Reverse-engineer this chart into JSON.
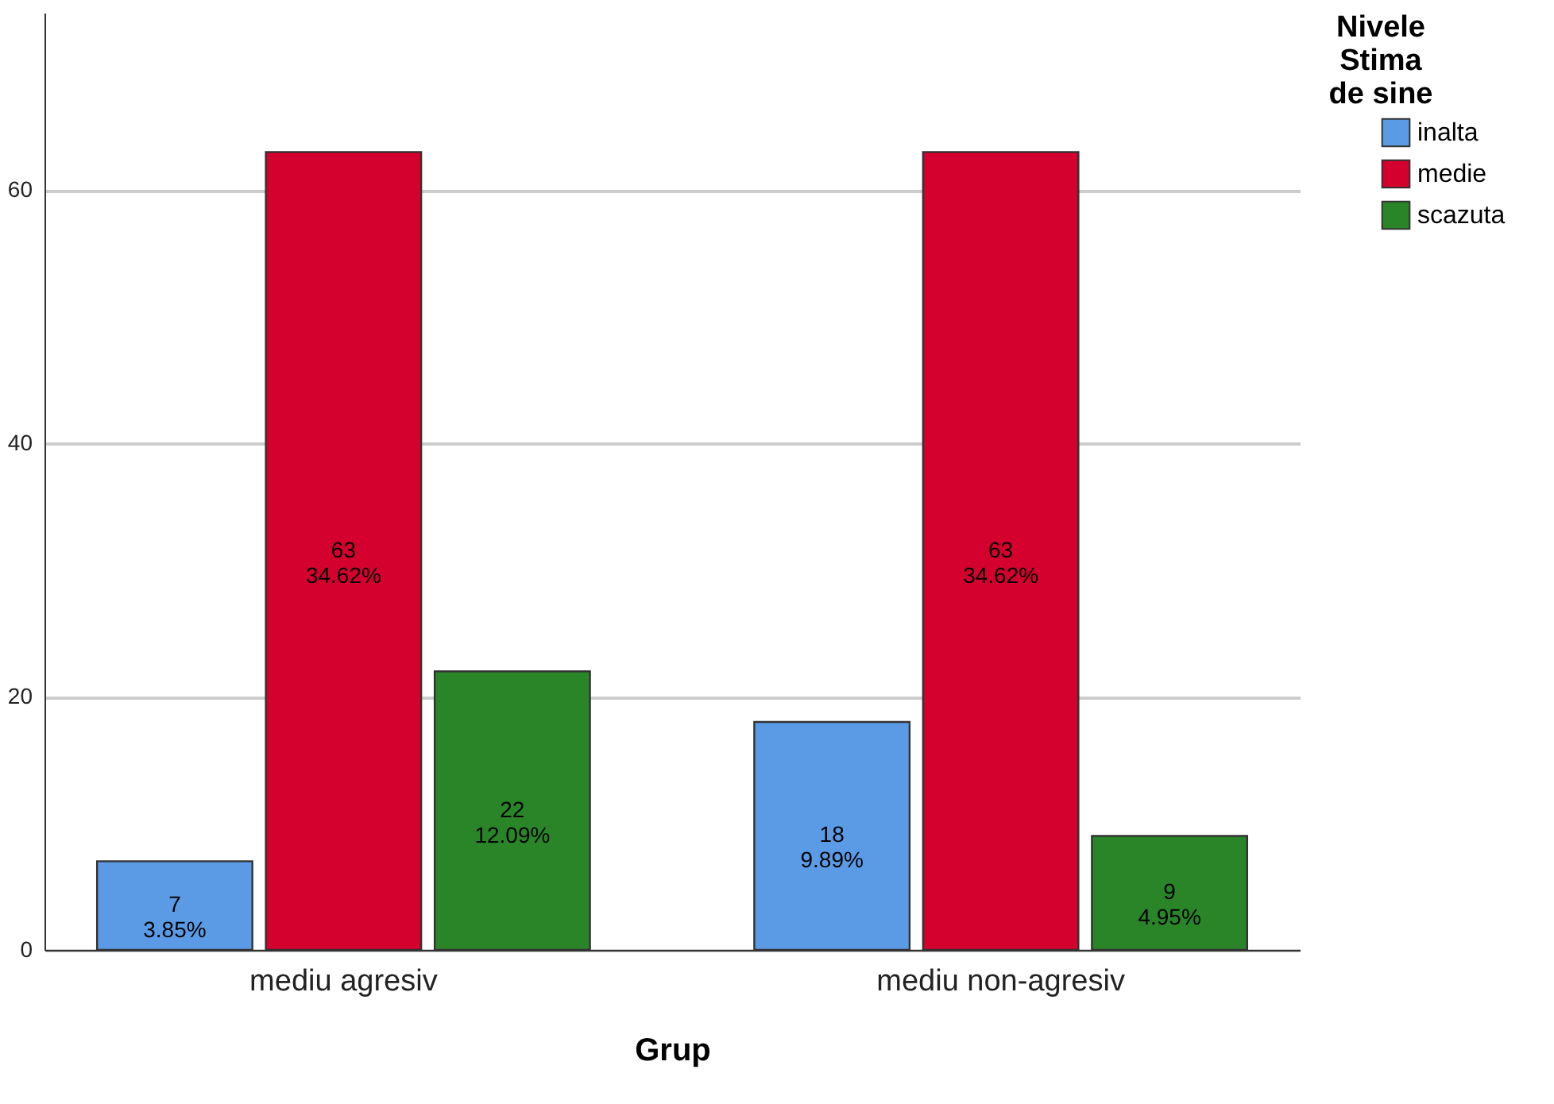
{
  "chart_data": {
    "type": "bar",
    "xlabel": "Grup",
    "legend_title": "Nivele\nStima\nde sine",
    "categories": [
      "mediu agresiv",
      "mediu non-agresiv"
    ],
    "series": [
      {
        "name": "inalta",
        "color": "#5b9be6",
        "values": [
          7,
          18
        ],
        "value_labels": [
          "7\n3.85%",
          "18\n9.89%"
        ]
      },
      {
        "name": "medie",
        "color": "#d4002e",
        "values": [
          63,
          63
        ],
        "value_labels": [
          "63\n34.62%",
          "63\n34.62%"
        ]
      },
      {
        "name": "scazuta",
        "color": "#2a8529",
        "values": [
          22,
          9
        ],
        "value_labels": [
          "22\n12.09%",
          "9\n4.95%"
        ]
      }
    ],
    "ylim": [
      0,
      74
    ],
    "yticks": [
      0,
      20,
      40,
      60
    ],
    "grid": "y",
    "legend": "top right"
  }
}
